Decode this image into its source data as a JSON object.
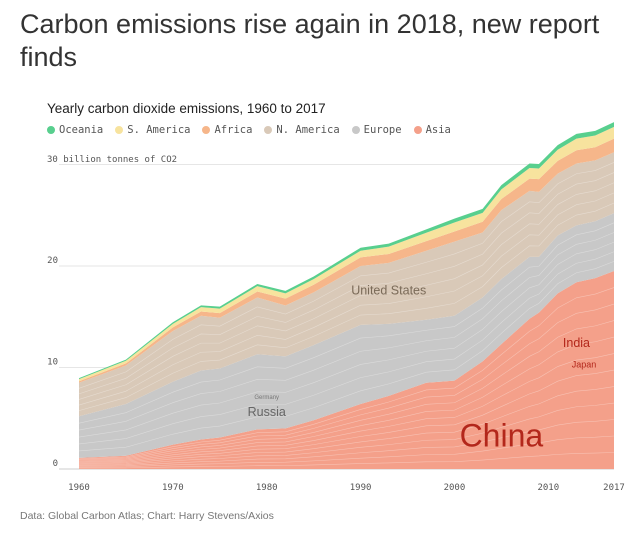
{
  "headline": "Carbon emissions rise again in 2018, new report finds",
  "source": "Data: Global Carbon Atlas; Chart: Harry Stevens/Axios",
  "chart_data": {
    "type": "area",
    "stacked": true,
    "title": "Yearly carbon dioxide emissions, 1960 to 2017",
    "ylabel": "30 billion tonnes of CO2",
    "xlim": [
      1960,
      2017
    ],
    "ylim": [
      0,
      33
    ],
    "xticks": [
      "1960",
      "1970",
      "1980",
      "1990",
      "2000",
      "2010",
      "2017"
    ],
    "yticks": [
      "0",
      "10",
      "20"
    ],
    "years": [
      1960,
      1965,
      1970,
      1973,
      1975,
      1979,
      1982,
      1985,
      1990,
      1993,
      1997,
      2000,
      2003,
      2005,
      2008,
      2009,
      2011,
      2013,
      2015,
      2017
    ],
    "series": [
      {
        "name": "Asia",
        "color": "#f4a08a",
        "values": [
          1.1,
          1.3,
          2.4,
          2.9,
          3.1,
          3.9,
          4.0,
          4.8,
          6.4,
          7.2,
          8.5,
          8.7,
          10.6,
          12.3,
          14.8,
          15.4,
          17.3,
          18.4,
          18.8,
          19.5
        ]
      },
      {
        "name": "Europe",
        "color": "#c8c8c8",
        "values": [
          4.1,
          5.1,
          6.2,
          6.8,
          6.8,
          7.4,
          7.1,
          7.4,
          7.8,
          7.1,
          6.2,
          6.4,
          6.3,
          6.4,
          6.1,
          5.5,
          5.7,
          5.6,
          5.6,
          5.7
        ]
      },
      {
        "name": "N. America",
        "color": "#d9c9b8",
        "values": [
          3.3,
          3.8,
          5.0,
          5.4,
          5.0,
          5.6,
          5.0,
          5.2,
          5.8,
          6.0,
          6.8,
          7.3,
          6.4,
          6.8,
          6.5,
          6.4,
          6.1,
          6.1,
          6.0,
          6.0
        ]
      },
      {
        "name": "Africa",
        "color": "#f6b68a",
        "values": [
          0.15,
          0.2,
          0.35,
          0.42,
          0.45,
          0.58,
          0.68,
          0.75,
          0.85,
          0.88,
          0.95,
          1.0,
          1.05,
          1.1,
          1.2,
          1.25,
          1.25,
          1.3,
          1.3,
          1.35
        ]
      },
      {
        "name": "S. America",
        "color": "#f7e39e",
        "values": [
          0.2,
          0.26,
          0.35,
          0.42,
          0.45,
          0.53,
          0.52,
          0.55,
          0.65,
          0.72,
          0.82,
          0.88,
          0.88,
          0.94,
          1.05,
          1.05,
          1.1,
          1.15,
          1.15,
          1.15
        ]
      },
      {
        "name": "Oceania",
        "color": "#58cf8e",
        "values": [
          0.1,
          0.12,
          0.16,
          0.18,
          0.2,
          0.22,
          0.25,
          0.26,
          0.3,
          0.3,
          0.34,
          0.38,
          0.4,
          0.42,
          0.45,
          0.45,
          0.45,
          0.46,
          0.46,
          0.47
        ]
      }
    ],
    "annotations": [
      {
        "text": "China",
        "year": 2005,
        "value": 2.2,
        "size": "large",
        "color": "#b3271b"
      },
      {
        "text": "India",
        "year": 2013,
        "value": 12.0,
        "size": "medium",
        "color": "#b3271b"
      },
      {
        "text": "Japan",
        "year": 2013.8,
        "value": 10.0,
        "size": "small",
        "color": "#b3271b"
      },
      {
        "text": "United States",
        "year": 1993,
        "value": 17.2,
        "size": "medium",
        "color": "#7a6a58"
      },
      {
        "text": "Russia",
        "year": 1980,
        "value": 5.2,
        "size": "medium",
        "color": "#666666"
      },
      {
        "text": "Germany",
        "year": 1980,
        "value": 6.9,
        "size": "tiny",
        "color": "#777777"
      }
    ]
  }
}
